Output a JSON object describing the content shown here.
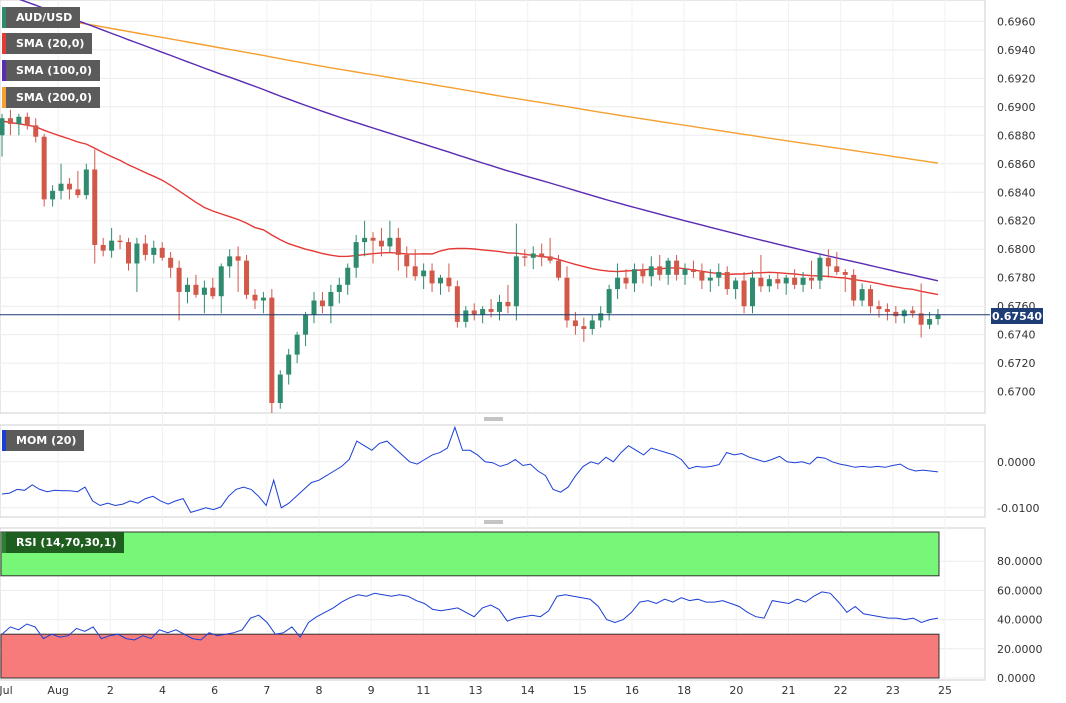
{
  "colors": {
    "up": "#2e8b6f",
    "down": "#d2584a",
    "sma20": "#e53935",
    "sma100": "#5a2bb3",
    "sma200": "#f5a032",
    "mom": "#1b3fd6",
    "rsi": "#1b3fd6",
    "rsi_upper_fill": "#77f677",
    "rsi_lower_fill": "#f77b7b",
    "last_price_line": "#1d3d74"
  },
  "legend": {
    "pair": "AUD/USD",
    "sma20": "SMA (20,0)",
    "sma100": "SMA (100,0)",
    "sma200": "SMA (200,0)",
    "mom": "MOM (20)",
    "rsi": "RSI (14,70,30,1)"
  },
  "last_price": "0.67540",
  "chart_data": [
    {
      "type": "candlestick",
      "title": "AUD/USD",
      "ylim": [
        0.6685,
        0.6975
      ],
      "y_ticks": [
        "0.6960",
        "0.6940",
        "0.6920",
        "0.6900",
        "0.6880",
        "0.6860",
        "0.6840",
        "0.6820",
        "0.6800",
        "0.6780",
        "0.6760",
        "0.6740",
        "0.6720",
        "0.6700"
      ],
      "x_ticks": [
        "Jul",
        "Aug",
        "2",
        "4",
        "6",
        "7",
        "8",
        "9",
        "11",
        "13",
        "14",
        "15",
        "16",
        "18",
        "20",
        "21",
        "22",
        "23",
        "25"
      ],
      "last_price": 0.6754,
      "sma": [
        {
          "name": "SMA (20,0)",
          "values_start_end": [
            0.689,
            0.6768
          ]
        },
        {
          "name": "SMA (100,0)",
          "values_start_end": [
            0.698,
            0.6775
          ]
        },
        {
          "name": "SMA (200,0)",
          "values_start_end": [
            0.6968,
            0.6876
          ]
        }
      ],
      "candles_ohlc": [
        [
          0.688,
          0.6895,
          0.6865,
          0.6892
        ],
        [
          0.6892,
          0.6898,
          0.688,
          0.6888
        ],
        [
          0.6888,
          0.6895,
          0.688,
          0.6893
        ],
        [
          0.6893,
          0.6896,
          0.6884,
          0.6887
        ],
        [
          0.6887,
          0.6892,
          0.6875,
          0.6879
        ],
        [
          0.6879,
          0.6881,
          0.683,
          0.6835
        ],
        [
          0.6835,
          0.6845,
          0.683,
          0.6841
        ],
        [
          0.6841,
          0.686,
          0.6835,
          0.6846
        ],
        [
          0.6846,
          0.685,
          0.6835,
          0.6842
        ],
        [
          0.6842,
          0.6855,
          0.6836,
          0.6838
        ],
        [
          0.6838,
          0.686,
          0.6835,
          0.6856
        ],
        [
          0.6856,
          0.687,
          0.679,
          0.6803
        ],
        [
          0.6803,
          0.6808,
          0.6795,
          0.6799
        ],
        [
          0.6799,
          0.6815,
          0.6794,
          0.6806
        ],
        [
          0.6806,
          0.681,
          0.68,
          0.6805
        ],
        [
          0.6805,
          0.6808,
          0.6785,
          0.679
        ],
        [
          0.679,
          0.6808,
          0.677,
          0.6804
        ],
        [
          0.6804,
          0.681,
          0.6792,
          0.6796
        ],
        [
          0.6796,
          0.6806,
          0.679,
          0.6801
        ],
        [
          0.6801,
          0.6805,
          0.6792,
          0.6794
        ],
        [
          0.6794,
          0.6798,
          0.678,
          0.6787
        ],
        [
          0.6787,
          0.6792,
          0.675,
          0.677
        ],
        [
          0.677,
          0.678,
          0.6762,
          0.6775
        ],
        [
          0.6775,
          0.6782,
          0.6766,
          0.6768
        ],
        [
          0.6768,
          0.6778,
          0.6755,
          0.6773
        ],
        [
          0.6773,
          0.678,
          0.6765,
          0.6767
        ],
        [
          0.6767,
          0.679,
          0.6755,
          0.6788
        ],
        [
          0.6788,
          0.68,
          0.678,
          0.6795
        ],
        [
          0.6795,
          0.6802,
          0.677,
          0.6792
        ],
        [
          0.6792,
          0.6796,
          0.6765,
          0.6768
        ],
        [
          0.6768,
          0.6772,
          0.6758,
          0.6764
        ],
        [
          0.6764,
          0.677,
          0.6755,
          0.6766
        ],
        [
          0.6766,
          0.6772,
          0.6685,
          0.6692
        ],
        [
          0.6692,
          0.6715,
          0.6688,
          0.6712
        ],
        [
          0.6712,
          0.673,
          0.6705,
          0.6726
        ],
        [
          0.6726,
          0.6742,
          0.672,
          0.674
        ],
        [
          0.674,
          0.6756,
          0.6732,
          0.6754
        ],
        [
          0.6754,
          0.677,
          0.6748,
          0.6764
        ],
        [
          0.6764,
          0.677,
          0.6755,
          0.676
        ],
        [
          0.676,
          0.6775,
          0.6748,
          0.677
        ],
        [
          0.677,
          0.678,
          0.6762,
          0.6775
        ],
        [
          0.6775,
          0.679,
          0.6768,
          0.6787
        ],
        [
          0.6787,
          0.681,
          0.678,
          0.6805
        ],
        [
          0.6805,
          0.682,
          0.6795,
          0.6808
        ],
        [
          0.6808,
          0.6812,
          0.679,
          0.6806
        ],
        [
          0.6806,
          0.6815,
          0.6795,
          0.6802
        ],
        [
          0.6802,
          0.682,
          0.6798,
          0.6808
        ],
        [
          0.6808,
          0.6815,
          0.6785,
          0.6796
        ],
        [
          0.6796,
          0.6802,
          0.678,
          0.6788
        ],
        [
          0.6788,
          0.68,
          0.6778,
          0.6781
        ],
        [
          0.6781,
          0.679,
          0.6772,
          0.6785
        ],
        [
          0.6785,
          0.679,
          0.677,
          0.6776
        ],
        [
          0.6776,
          0.6782,
          0.6768,
          0.678
        ],
        [
          0.678,
          0.679,
          0.677,
          0.6774
        ],
        [
          0.6774,
          0.6778,
          0.6745,
          0.6749
        ],
        [
          0.6749,
          0.676,
          0.6745,
          0.6757
        ],
        [
          0.6757,
          0.6762,
          0.675,
          0.6754
        ],
        [
          0.6754,
          0.676,
          0.6748,
          0.6758
        ],
        [
          0.6758,
          0.6765,
          0.6752,
          0.6756
        ],
        [
          0.6756,
          0.6768,
          0.675,
          0.6763
        ],
        [
          0.6763,
          0.6775,
          0.6755,
          0.676
        ],
        [
          0.676,
          0.6818,
          0.675,
          0.6795
        ],
        [
          0.6795,
          0.68,
          0.6788,
          0.6794
        ],
        [
          0.6794,
          0.6802,
          0.6786,
          0.6797
        ],
        [
          0.6797,
          0.6804,
          0.6788,
          0.6795
        ],
        [
          0.6795,
          0.6808,
          0.679,
          0.6792
        ],
        [
          0.6792,
          0.6796,
          0.6778,
          0.678
        ],
        [
          0.678,
          0.6788,
          0.6745,
          0.675
        ],
        [
          0.675,
          0.6756,
          0.674,
          0.6746
        ],
        [
          0.6746,
          0.6752,
          0.6735,
          0.6744
        ],
        [
          0.6744,
          0.6754,
          0.674,
          0.675
        ],
        [
          0.675,
          0.676,
          0.6745,
          0.6755
        ],
        [
          0.6755,
          0.6775,
          0.675,
          0.6772
        ],
        [
          0.6772,
          0.679,
          0.6765,
          0.678
        ],
        [
          0.678,
          0.6786,
          0.6772,
          0.6776
        ],
        [
          0.6776,
          0.679,
          0.677,
          0.6786
        ],
        [
          0.6786,
          0.679,
          0.6776,
          0.6781
        ],
        [
          0.6781,
          0.6795,
          0.6774,
          0.6788
        ],
        [
          0.6788,
          0.6796,
          0.6778,
          0.6782
        ],
        [
          0.6782,
          0.6794,
          0.6775,
          0.6792
        ],
        [
          0.6792,
          0.6796,
          0.6778,
          0.6782
        ],
        [
          0.6782,
          0.679,
          0.6775,
          0.6786
        ],
        [
          0.6786,
          0.6792,
          0.678,
          0.6784
        ],
        [
          0.6784,
          0.679,
          0.6772,
          0.6778
        ],
        [
          0.6778,
          0.6786,
          0.677,
          0.678
        ],
        [
          0.678,
          0.679,
          0.6774,
          0.6784
        ],
        [
          0.6784,
          0.6788,
          0.6768,
          0.6772
        ],
        [
          0.6772,
          0.678,
          0.6765,
          0.6778
        ],
        [
          0.6778,
          0.6784,
          0.6755,
          0.676
        ],
        [
          0.676,
          0.6785,
          0.6755,
          0.678
        ],
        [
          0.678,
          0.6796,
          0.677,
          0.6774
        ],
        [
          0.6774,
          0.6782,
          0.677,
          0.6779
        ],
        [
          0.6779,
          0.6784,
          0.6772,
          0.6776
        ],
        [
          0.6776,
          0.6782,
          0.6768,
          0.678
        ],
        [
          0.678,
          0.6786,
          0.6772,
          0.6775
        ],
        [
          0.6775,
          0.6784,
          0.677,
          0.678
        ],
        [
          0.678,
          0.6792,
          0.6772,
          0.6778
        ],
        [
          0.6778,
          0.6796,
          0.6772,
          0.6794
        ],
        [
          0.6794,
          0.68,
          0.678,
          0.6788
        ],
        [
          0.6788,
          0.6798,
          0.6782,
          0.6784
        ],
        [
          0.6784,
          0.6786,
          0.677,
          0.6782
        ],
        [
          0.6782,
          0.6786,
          0.676,
          0.6764
        ],
        [
          0.6764,
          0.6776,
          0.676,
          0.6772
        ],
        [
          0.6772,
          0.6775,
          0.6755,
          0.676
        ],
        [
          0.676,
          0.6764,
          0.6752,
          0.6758
        ],
        [
          0.6758,
          0.6762,
          0.675,
          0.6756
        ],
        [
          0.6756,
          0.676,
          0.6748,
          0.6753
        ],
        [
          0.6753,
          0.6758,
          0.6748,
          0.6757
        ],
        [
          0.6757,
          0.676,
          0.6752,
          0.6755
        ],
        [
          0.6755,
          0.6776,
          0.6738,
          0.6747
        ],
        [
          0.6747,
          0.6756,
          0.6744,
          0.6751
        ],
        [
          0.6751,
          0.6758,
          0.6747,
          0.6754
        ]
      ]
    },
    {
      "type": "line",
      "title": "MOM (20)",
      "ylim": [
        -0.012,
        0.008
      ],
      "y_ticks": [
        "0.0000",
        "-0.0100"
      ],
      "series": [
        {
          "name": "MOM (20)",
          "values": [
            -0.007,
            -0.0068,
            -0.006,
            -0.0062,
            -0.005,
            -0.006,
            -0.0065,
            -0.0062,
            -0.0063,
            -0.0063,
            -0.0065,
            -0.0055,
            -0.0085,
            -0.0095,
            -0.009,
            -0.0095,
            -0.0092,
            -0.0085,
            -0.009,
            -0.008,
            -0.0075,
            -0.0085,
            -0.0092,
            -0.0085,
            -0.008,
            -0.011,
            -0.0105,
            -0.01,
            -0.0104,
            -0.0098,
            -0.0075,
            -0.006,
            -0.0055,
            -0.006,
            -0.0075,
            -0.0095,
            -0.004,
            -0.01,
            -0.009,
            -0.0075,
            -0.006,
            -0.0045,
            -0.004,
            -0.003,
            -0.002,
            -0.001,
            0.0005,
            0.0045,
            0.0035,
            0.0025,
            0.004,
            0.0045,
            0.003,
            0.0015,
            0.0,
            -0.0005,
            0.0005,
            0.0015,
            0.002,
            0.003,
            0.0075,
            0.0025,
            0.0025,
            0.0015,
            0.0,
            -0.0002,
            -0.001,
            -0.0005,
            0.0005,
            -0.0008,
            -0.0005,
            -0.002,
            -0.003,
            -0.006,
            -0.0066,
            -0.0055,
            -0.003,
            -0.001,
            0.0,
            -0.0005,
            0.001,
            0.0,
            0.002,
            0.0035,
            0.0025,
            0.0015,
            0.003,
            0.0025,
            0.002,
            0.0015,
            0.0005,
            -0.0015,
            -0.001,
            -0.0012,
            -0.001,
            -0.0006,
            0.002,
            0.0015,
            0.0018,
            0.001,
            0.0005,
            0.0,
            0.0005,
            0.0012,
            0.0,
            -0.0002,
            0.0,
            -0.0005,
            0.001,
            0.0008,
            0.0,
            -0.0005,
            -0.0008,
            -0.0012,
            -0.001,
            -0.0012,
            -0.001,
            -0.0012,
            -0.0008,
            -0.0005,
            -0.0015,
            -0.002,
            -0.0018,
            -0.002,
            -0.0022
          ]
        }
      ]
    },
    {
      "type": "line",
      "title": "RSI (14,70,30,1)",
      "ylim": [
        0,
        100
      ],
      "y_ticks": [
        "80.0000",
        "60.0000",
        "40.0000",
        "20.0000",
        "0.0000"
      ],
      "overbought": 70,
      "oversold": 30,
      "series": [
        {
          "name": "RSI (14,70,30,1)",
          "values": [
            30,
            35,
            33,
            37,
            35,
            27,
            30,
            28,
            29,
            34,
            32,
            35,
            27,
            29,
            30,
            27,
            26,
            29,
            27,
            33,
            31,
            33,
            30,
            27,
            26,
            31,
            29,
            30,
            31,
            33,
            41,
            43,
            38,
            30,
            31,
            35,
            28,
            38,
            42,
            45,
            48,
            52,
            55,
            57,
            56,
            58,
            57,
            56,
            57,
            56,
            53,
            51,
            47,
            46,
            47,
            48,
            45,
            42,
            48,
            50,
            47,
            39,
            41,
            42,
            43,
            42,
            46,
            56,
            57,
            56,
            55,
            54,
            49,
            40,
            38,
            40,
            45,
            52,
            53,
            51,
            54,
            52,
            55,
            53,
            54,
            52,
            52,
            53,
            51,
            49,
            45,
            42,
            41,
            53,
            52,
            51,
            54,
            52,
            56,
            59,
            58,
            52,
            45,
            49,
            44,
            43,
            42,
            41,
            41,
            40,
            41,
            38,
            40,
            41
          ]
        }
      ]
    }
  ]
}
